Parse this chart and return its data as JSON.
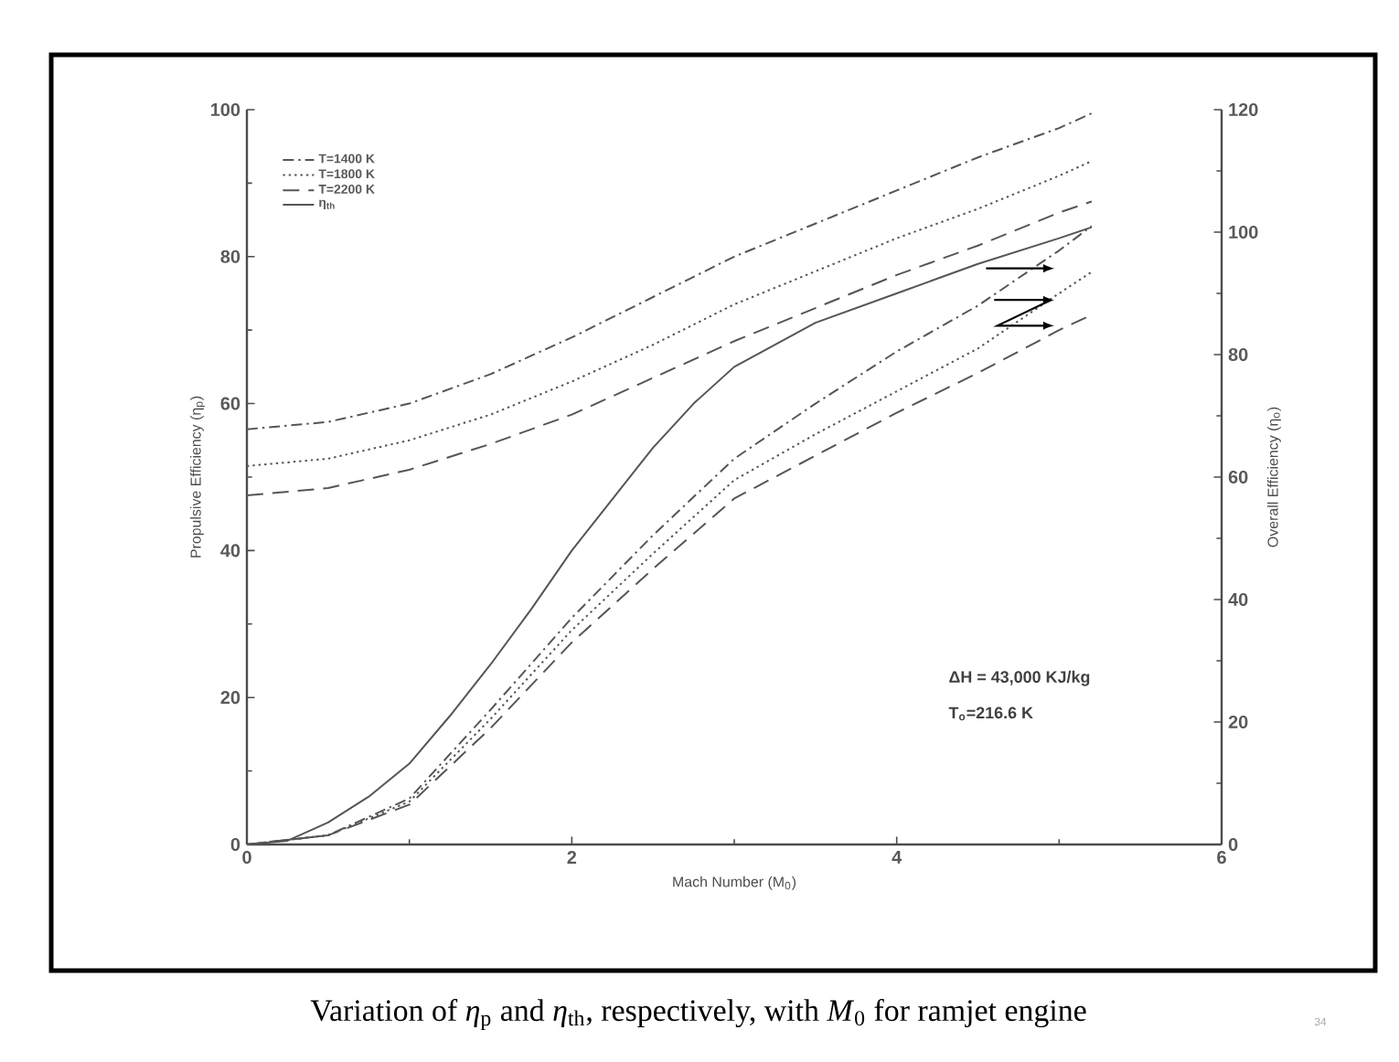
{
  "chart_data": {
    "type": "line",
    "title": "Variation of *η*$_{p}$ and *η*$_{th}$, respectively, with *M*$_{0}$ for ramjet engine",
    "xlabel": "Mach Number (M$_{0}$)",
    "ylabel": "Propulsive Efficiency (η$_{p}$)",
    "y2label": "Overall Efficiency (η$_{o}$)",
    "x": [
      0,
      0.5,
      1,
      1.5,
      2,
      2.5,
      3,
      3.5,
      4,
      4.5,
      5,
      5.2
    ],
    "series": [
      {
        "name": "T=1400 K",
        "color": "#555555",
        "line_style": "dash-dot",
        "values": [
          56.5,
          57.5,
          60,
          64,
          69,
          74.5,
          80,
          84.5,
          89,
          93.5,
          97.5,
          99.5
        ]
      },
      {
        "name": "T=1800 K",
        "color": "#555555",
        "line_style": "dotted",
        "values": [
          51.5,
          52.5,
          55,
          58.5,
          63,
          68,
          73.5,
          78,
          82.5,
          86.5,
          91,
          93
        ]
      },
      {
        "name": "T=2200 K",
        "color": "#555555",
        "line_style": "dashed",
        "values": [
          47.5,
          48.5,
          51,
          54.5,
          58.5,
          63.5,
          68.5,
          73,
          77.5,
          81.5,
          86,
          87.5
        ]
      },
      {
        "name": "η$_{th}$",
        "color": "#555555",
        "line_style": "solid",
        "x": [
          0,
          0.25,
          0.5,
          0.75,
          1,
          1.25,
          1.5,
          1.75,
          2,
          2.25,
          2.5,
          2.75,
          3,
          3.5,
          4,
          4.5,
          5,
          5.2
        ],
        "values": [
          0,
          0.5,
          3,
          6.5,
          11,
          17.5,
          24.5,
          32,
          40,
          47,
          54,
          60,
          65,
          71,
          75,
          79,
          82.5,
          84
        ]
      },
      {
        "color": "#555555",
        "line_style": "dash-dot",
        "axis": "y2",
        "values": [
          0,
          1.5,
          7.5,
          22,
          37,
          50.5,
          63,
          72,
          80.5,
          88,
          97,
          101
        ]
      },
      {
        "color": "#555555",
        "line_style": "dotted",
        "axis": "y2",
        "values": [
          0,
          1.5,
          7,
          20.5,
          35,
          47.5,
          59.5,
          67,
          74,
          81,
          90,
          93.5
        ]
      },
      {
        "color": "#555555",
        "line_style": "dashed",
        "axis": "y2",
        "values": [
          0,
          1.5,
          6.5,
          19,
          33,
          45,
          56.5,
          63.5,
          70.5,
          77,
          84,
          86.5
        ]
      }
    ],
    "xlim": [
      0,
      6
    ],
    "xticks": [
      0,
      2,
      4,
      6
    ],
    "ylim": [
      0,
      100
    ],
    "yticks": [
      0,
      20,
      40,
      60,
      80,
      100
    ],
    "y2lim": [
      0,
      120
    ],
    "y2ticks": [
      0,
      20,
      40,
      60,
      80,
      100,
      120
    ],
    "legend": "top left",
    "annotations": [
      "ΔH = 43,000 KJ/kg",
      "T$_{o}$=216.6 K",
      "34"
    ]
  }
}
